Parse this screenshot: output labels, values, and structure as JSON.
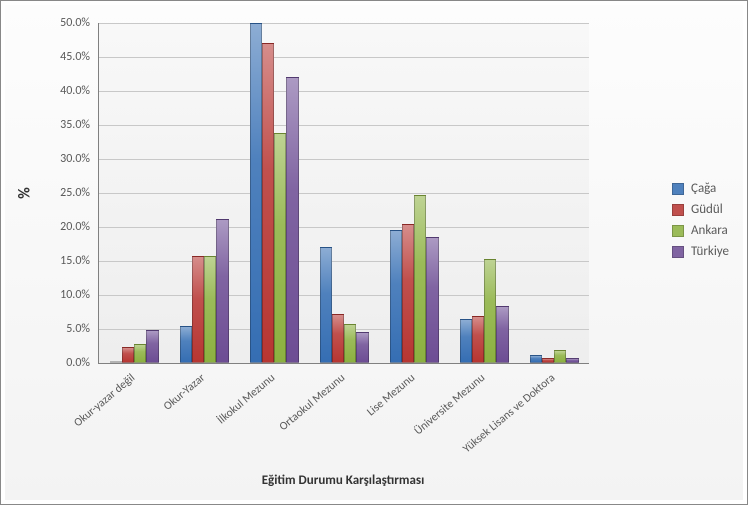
{
  "chart": {
    "type": "bar",
    "y_axis_title": "%",
    "x_axis_title": "Eğitim Durumu Karşılaştırması",
    "title_fontsize": 16,
    "label_fontsize": 13,
    "tick_fontsize": 12,
    "background_color": "#ffffff",
    "plot_bg_gradient_top": "#f8f8f8",
    "plot_bg_gradient_bottom": "#eeeeee",
    "grid_color": "#c8c8c8",
    "axis_line_color": "#808080",
    "ylim": [
      0,
      50
    ],
    "ytick_step": 5,
    "ytick_format_suffix": "%",
    "ytick_decimals": 1,
    "categories": [
      "Okur-yazar değil",
      "Okur-Yazar",
      "İlkokul Mezunu",
      "Ortaokul Mezunu",
      "Lise Mezunu",
      "Üniversite Mezunu",
      "Yüksek Lisans ve Doktora"
    ],
    "x_label_rotation_deg": -40,
    "series": [
      {
        "name": "Çağa",
        "color": "#4F81BD"
      },
      {
        "name": "Güdül",
        "color": "#C0504D"
      },
      {
        "name": "Ankara",
        "color": "#9BBB59"
      },
      {
        "name": "Türkiye",
        "color": "#8064A2"
      }
    ],
    "values": {
      "Çağa": [
        0.2,
        5.5,
        50.0,
        17.0,
        19.5,
        6.5,
        1.2
      ],
      "Güdül": [
        2.3,
        15.8,
        47.0,
        7.2,
        20.5,
        6.9,
        0.8
      ],
      "Ankara": [
        2.8,
        15.8,
        33.8,
        5.7,
        24.7,
        15.3,
        1.9
      ],
      "Türkiye": [
        4.9,
        21.2,
        42.0,
        4.5,
        18.6,
        8.4,
        0.8
      ]
    },
    "group_gap_ratio": 0.3,
    "bar_gap_ratio": 0.0,
    "bar_depth_style": "gradient"
  }
}
